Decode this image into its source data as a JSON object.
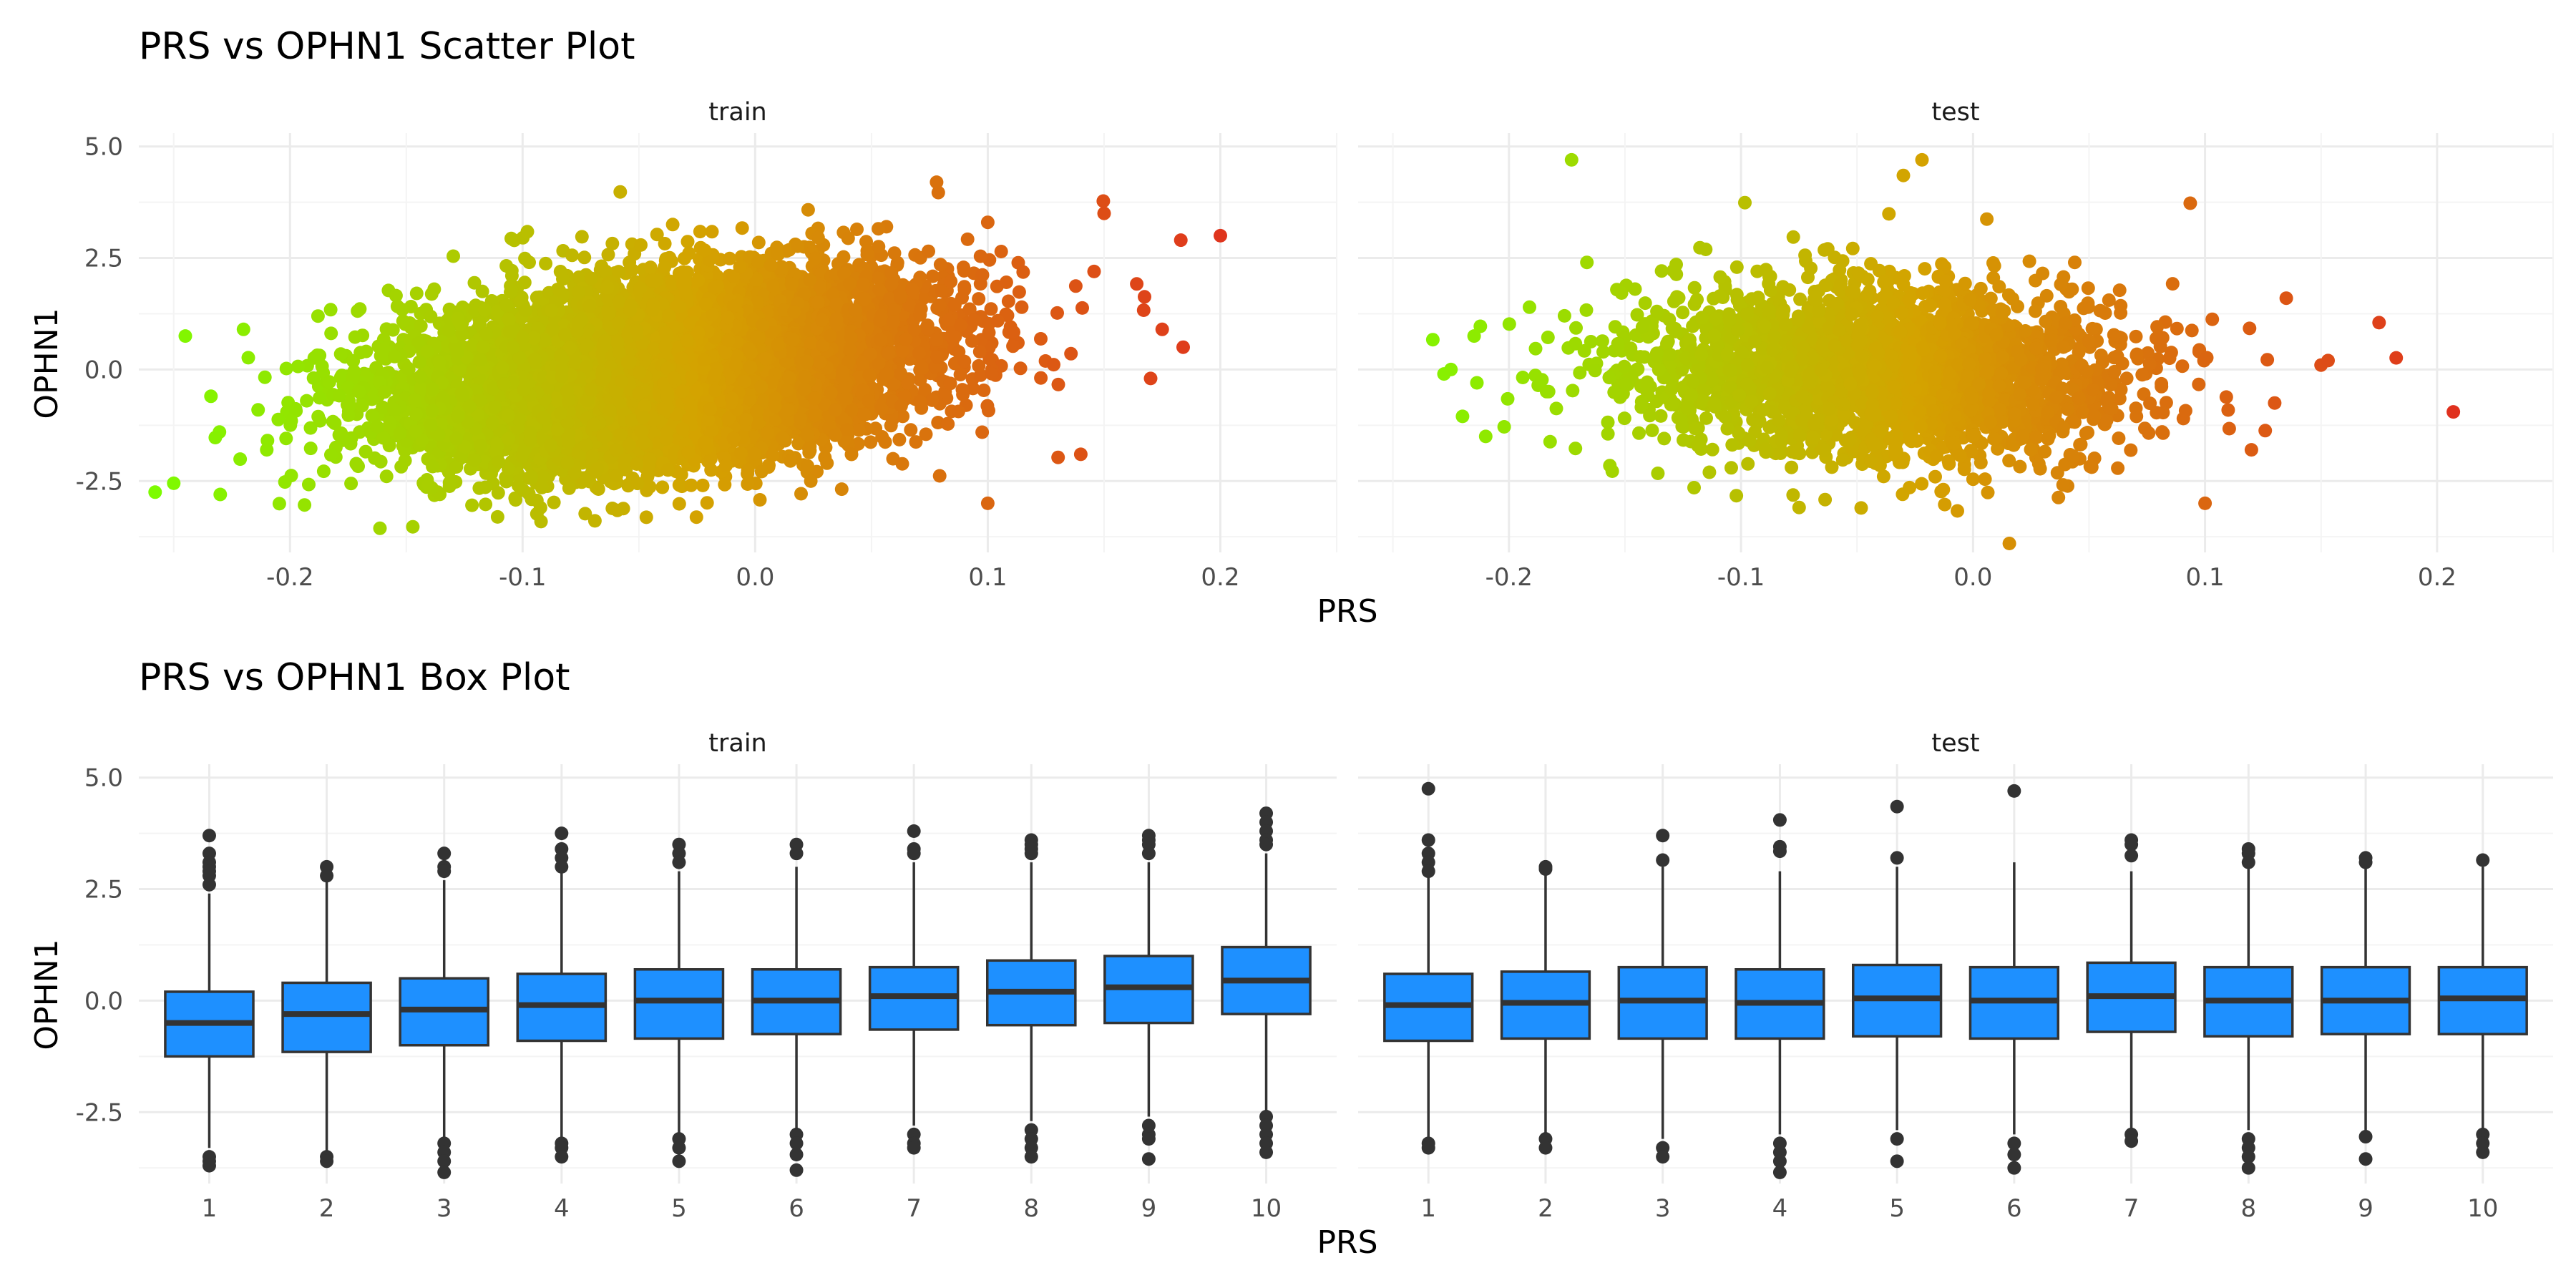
{
  "colors": {
    "grid_major": "#ebebeb",
    "grid_minor": "#f4f4f4",
    "text_dark": "#1a1a1a",
    "tick_text": "#4d4d4d",
    "box_fill": "#1e90ff",
    "box_line": "#333333",
    "scatter_low": "#7cfc00",
    "scatter_mid": "#d4a300",
    "scatter_high": "#e0301e"
  },
  "chart_data": [
    {
      "type": "scatter",
      "title": "PRS vs OPHN1 Scatter Plot",
      "xlabel": "PRS",
      "ylabel": "OPHN1",
      "xlim": [
        -0.265,
        0.25
      ],
      "ylim": [
        -4.1,
        5.3
      ],
      "x_ticks": [
        -0.2,
        -0.1,
        0.0,
        0.1,
        0.2
      ],
      "x_tick_labels": [
        "-0.2",
        "-0.1",
        "0.0",
        "0.1",
        "0.2"
      ],
      "y_ticks": [
        -2.5,
        0.0,
        2.5,
        5.0
      ],
      "y_tick_labels": [
        "-2.5",
        "0.0",
        "2.5",
        "5.0"
      ],
      "color_scale": "gradient by PRS (green → orange → red)",
      "grid": true,
      "panels": [
        {
          "name": "train",
          "x_center": -0.04,
          "x_sd": 0.055,
          "slope": 6.0,
          "y_sd": 1.0,
          "approx_n": 8000,
          "notable_points": [
            {
              "x": 0.2,
              "y": 3.0
            },
            {
              "x": 0.183,
              "y": 2.9
            },
            {
              "x": 0.15,
              "y": 3.5
            },
            {
              "x": 0.184,
              "y": 0.5
            },
            {
              "x": 0.175,
              "y": 0.9
            },
            {
              "x": -0.258,
              "y": -2.75
            },
            {
              "x": -0.25,
              "y": -2.55
            },
            {
              "x": -0.245,
              "y": 0.75
            },
            {
              "x": -0.234,
              "y": -0.6
            },
            {
              "x": -0.23,
              "y": -2.8
            },
            {
              "x": 0.1,
              "y": -3.0
            },
            {
              "x": 0.1,
              "y": 3.3
            },
            {
              "x": 0.078,
              "y": 4.2
            },
            {
              "x": 0.14,
              "y": -1.9
            },
            {
              "x": 0.17,
              "y": -0.2
            },
            {
              "x": -0.22,
              "y": 0.9
            },
            {
              "x": -0.21,
              "y": -1.8
            }
          ]
        },
        {
          "name": "test",
          "x_center": -0.04,
          "x_sd": 0.053,
          "slope": -1.5,
          "y_sd": 1.0,
          "approx_n": 2500,
          "notable_points": [
            {
              "x": 0.207,
              "y": -0.95
            },
            {
              "x": 0.175,
              "y": 1.05
            },
            {
              "x": 0.15,
              "y": 0.1
            },
            {
              "x": 0.153,
              "y": 0.2
            },
            {
              "x": 0.135,
              "y": 1.6
            },
            {
              "x": -0.173,
              "y": 4.7
            },
            {
              "x": -0.022,
              "y": 4.7
            },
            {
              "x": -0.03,
              "y": 4.35
            },
            {
              "x": -0.228,
              "y": -0.1
            },
            {
              "x": -0.225,
              "y": 0.0
            },
            {
              "x": -0.215,
              "y": 0.75
            },
            {
              "x": -0.22,
              "y": -1.05
            },
            {
              "x": -0.21,
              "y": -1.5
            },
            {
              "x": 0.1,
              "y": -3.0
            },
            {
              "x": 0.12,
              "y": -1.8
            },
            {
              "x": 0.13,
              "y": -0.75
            }
          ]
        }
      ]
    },
    {
      "type": "box",
      "title": "PRS vs OPHN1 Box Plot",
      "xlabel": "PRS",
      "ylabel": "OPHN1",
      "categories": [
        "1",
        "2",
        "3",
        "4",
        "5",
        "6",
        "7",
        "8",
        "9",
        "10"
      ],
      "ylim": [
        -4.1,
        5.3
      ],
      "y_ticks": [
        -2.5,
        0.0,
        2.5,
        5.0
      ],
      "y_tick_labels": [
        "-2.5",
        "0.0",
        "2.5",
        "5.0"
      ],
      "grid": true,
      "panels": [
        {
          "name": "train",
          "boxes": [
            {
              "q1": -1.25,
              "median": -0.5,
              "q3": 0.2,
              "wlo": -3.3,
              "whi": 2.4,
              "outliers": [
                3.7,
                3.3,
                3.1,
                3.0,
                2.9,
                2.8,
                2.6,
                -3.5,
                -3.6,
                -3.7
              ]
            },
            {
              "q1": -1.15,
              "median": -0.3,
              "q3": 0.4,
              "wlo": -3.4,
              "whi": 2.7,
              "outliers": [
                3.0,
                2.8,
                -3.5,
                -3.6
              ]
            },
            {
              "q1": -1.0,
              "median": -0.2,
              "q3": 0.5,
              "wlo": -3.1,
              "whi": 2.7,
              "outliers": [
                3.3,
                3.0,
                2.9,
                -3.2,
                -3.4,
                -3.6,
                -3.85
              ]
            },
            {
              "q1": -0.9,
              "median": -0.1,
              "q3": 0.6,
              "wlo": -3.1,
              "whi": 2.9,
              "outliers": [
                3.75,
                3.4,
                3.2,
                3.0,
                -3.2,
                -3.3,
                -3.5
              ]
            },
            {
              "q1": -0.85,
              "median": 0.0,
              "q3": 0.7,
              "wlo": -3.0,
              "whi": 2.9,
              "outliers": [
                3.5,
                3.3,
                3.1,
                -3.1,
                -3.3,
                -3.6
              ]
            },
            {
              "q1": -0.75,
              "median": 0.0,
              "q3": 0.7,
              "wlo": -2.9,
              "whi": 3.0,
              "outliers": [
                3.5,
                3.3,
                -3.0,
                -3.2,
                -3.45,
                -3.8
              ]
            },
            {
              "q1": -0.65,
              "median": 0.1,
              "q3": 0.75,
              "wlo": -2.8,
              "whi": 3.1,
              "outliers": [
                3.8,
                3.4,
                3.3,
                -3.0,
                -3.2,
                -3.3
              ]
            },
            {
              "q1": -0.55,
              "median": 0.2,
              "q3": 0.9,
              "wlo": -2.7,
              "whi": 3.1,
              "outliers": [
                3.6,
                3.5,
                3.4,
                3.3,
                -2.9,
                -3.1,
                -3.3,
                -3.5
              ]
            },
            {
              "q1": -0.5,
              "median": 0.3,
              "q3": 1.0,
              "wlo": -2.6,
              "whi": 3.1,
              "outliers": [
                3.7,
                3.6,
                3.5,
                3.3,
                -2.8,
                -3.0,
                -3.1,
                -3.55
              ]
            },
            {
              "q1": -0.3,
              "median": 0.45,
              "q3": 1.2,
              "wlo": -2.5,
              "whi": 3.3,
              "outliers": [
                4.2,
                4.0,
                3.8,
                3.6,
                3.5,
                -2.6,
                -2.8,
                -3.0,
                -3.2,
                -3.4
              ]
            }
          ]
        },
        {
          "name": "test",
          "boxes": [
            {
              "q1": -0.9,
              "median": -0.1,
              "q3": 0.6,
              "wlo": -3.1,
              "whi": 2.8,
              "outliers": [
                4.75,
                3.6,
                3.3,
                3.1,
                2.9,
                -3.2,
                -3.3
              ]
            },
            {
              "q1": -0.85,
              "median": -0.05,
              "q3": 0.65,
              "wlo": -3.0,
              "whi": 2.9,
              "outliers": [
                3.0,
                2.95,
                -3.1,
                -3.3
              ]
            },
            {
              "q1": -0.85,
              "median": 0.0,
              "q3": 0.75,
              "wlo": -3.1,
              "whi": 3.0,
              "outliers": [
                3.7,
                3.15,
                -3.3,
                -3.5
              ]
            },
            {
              "q1": -0.85,
              "median": -0.05,
              "q3": 0.7,
              "wlo": -3.0,
              "whi": 2.9,
              "outliers": [
                4.05,
                3.45,
                3.35,
                -3.2,
                -3.4,
                -3.6,
                -3.85
              ]
            },
            {
              "q1": -0.8,
              "median": 0.05,
              "q3": 0.8,
              "wlo": -2.9,
              "whi": 3.0,
              "outliers": [
                4.35,
                3.2,
                -3.1,
                -3.6
              ]
            },
            {
              "q1": -0.85,
              "median": 0.0,
              "q3": 0.75,
              "wlo": -3.0,
              "whi": 3.1,
              "outliers": [
                4.7,
                -3.2,
                -3.45,
                -3.75
              ]
            },
            {
              "q1": -0.7,
              "median": 0.1,
              "q3": 0.85,
              "wlo": -2.9,
              "whi": 2.9,
              "outliers": [
                3.6,
                3.5,
                3.25,
                -3.0,
                -3.15
              ]
            },
            {
              "q1": -0.8,
              "median": 0.0,
              "q3": 0.75,
              "wlo": -2.9,
              "whi": 3.0,
              "outliers": [
                3.4,
                3.3,
                3.1,
                -3.1,
                -3.3,
                -3.5,
                -3.75
              ]
            },
            {
              "q1": -0.75,
              "median": 0.0,
              "q3": 0.75,
              "wlo": -2.9,
              "whi": 3.0,
              "outliers": [
                3.2,
                3.1,
                -3.05,
                -3.55
              ]
            },
            {
              "q1": -0.75,
              "median": 0.05,
              "q3": 0.75,
              "wlo": -2.9,
              "whi": 3.0,
              "outliers": [
                3.15,
                -3.0,
                -3.2,
                -3.4
              ]
            }
          ]
        }
      ]
    }
  ]
}
